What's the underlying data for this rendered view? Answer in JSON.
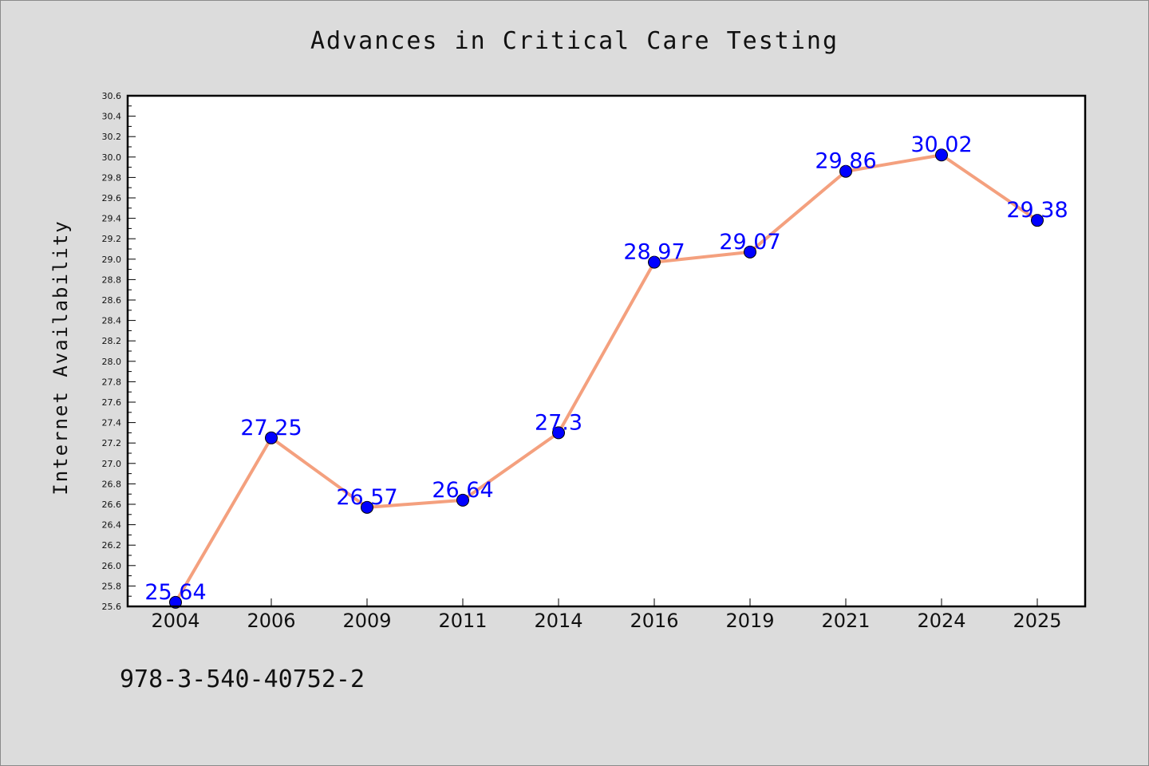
{
  "chart_data": {
    "type": "line",
    "title": "Advances in Critical Care Testing",
    "xlabel": "",
    "ylabel": "Internet Availability",
    "categories": [
      "2004",
      "2006",
      "2009",
      "2011",
      "2014",
      "2016",
      "2019",
      "2021",
      "2024",
      "2025"
    ],
    "series": [
      {
        "values": [
          25.64,
          27.25,
          26.57,
          26.64,
          27.3,
          28.97,
          29.07,
          29.86,
          30.02,
          29.38
        ],
        "labels": [
          "25.64",
          "27.25",
          "26.57",
          "26.64",
          "27.3",
          "28.97",
          "29.07",
          "29.86",
          "30.02",
          "29.38"
        ],
        "line_color": "#f4a07e",
        "marker_color": "#0000ff"
      }
    ],
    "ylim": [
      25.6,
      30.6
    ],
    "yticks": [
      "25.6",
      "25.8",
      "26.0",
      "26.2",
      "26.4",
      "26.6",
      "26.8",
      "27.0",
      "27.2",
      "27.4",
      "27.6",
      "27.8",
      "28.0",
      "28.2",
      "28.4",
      "28.6",
      "28.8",
      "29.0",
      "29.2",
      "29.4",
      "29.6",
      "29.8",
      "30.0",
      "30.2",
      "30.4",
      "30.6"
    ],
    "grid": false,
    "legend": "none"
  },
  "footer": {
    "code": "978-3-540-40752-2"
  },
  "colors": {
    "background": "#dcdcdc",
    "plot_area": "#ffffff",
    "line": "#f4a07e",
    "marker": "#0000ff",
    "data_label": "#0000ff"
  }
}
